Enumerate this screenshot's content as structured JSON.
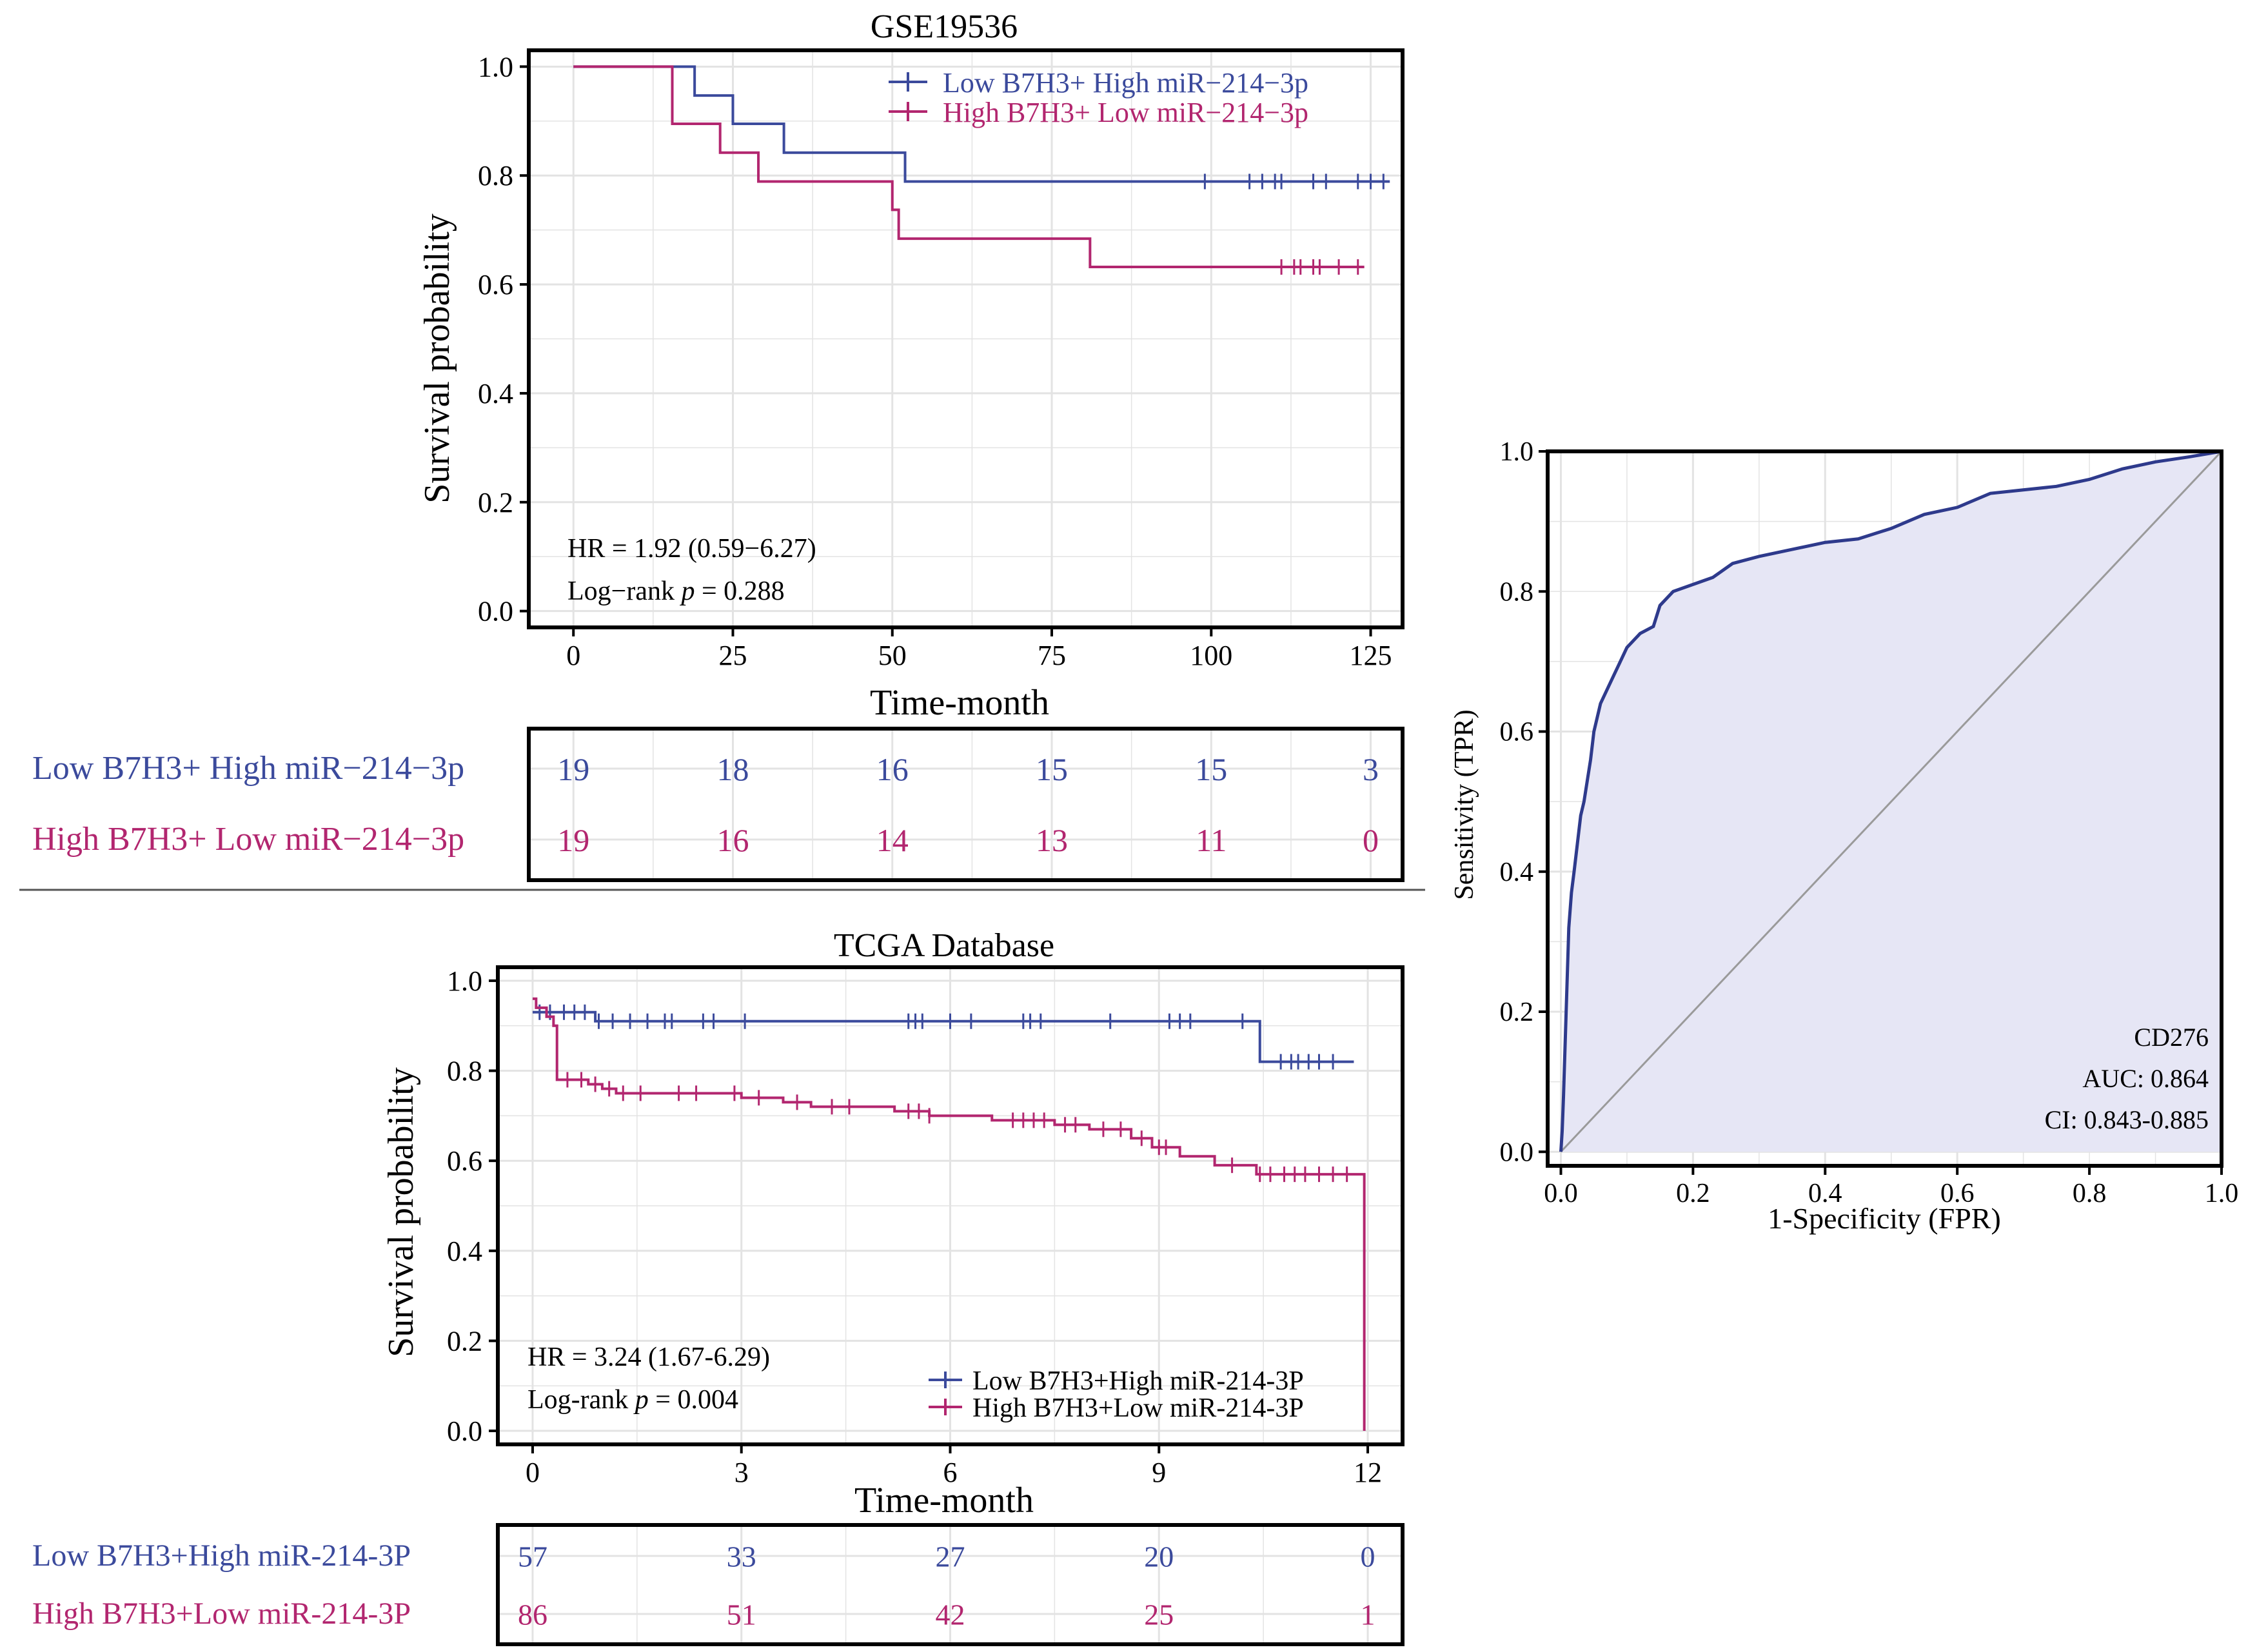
{
  "colors": {
    "low": "#3b4a9c",
    "high": "#b2266f",
    "roc": "#2e3a8c",
    "roc_fill": "#e6e6f5",
    "grid": "#e3e3e3",
    "diag": "#9a9a9a",
    "axis": "#000000"
  },
  "chart_data": [
    {
      "id": "gse",
      "type": "kaplan-meier",
      "title": "GSE19536",
      "xlabel": "Time-month",
      "ylabel": "Survival probability",
      "xlim": [
        -7,
        130
      ],
      "ylim": [
        -0.03,
        1.03
      ],
      "xticks": [
        0,
        25,
        50,
        75,
        100,
        125
      ],
      "xtick_labels": [
        "0",
        "25",
        "50",
        "75",
        "100",
        "125"
      ],
      "yticks": [
        0,
        0.2,
        0.4,
        0.6,
        0.8,
        1.0
      ],
      "ytick_labels": [
        "0.0",
        "0.2",
        "0.4",
        "0.6",
        "0.8",
        "1.0"
      ],
      "hr_text": "HR = 1.92 (0.59−6.27)",
      "logrank_prefix": "Log−rank ",
      "logrank_p": "p",
      "logrank_value": " = 0.288",
      "series": [
        {
          "name": "Low B7H3+ High miR−214−3p",
          "color_key": "low",
          "steps": [
            [
              0,
              1.0
            ],
            [
              19,
              0.947
            ],
            [
              25,
              0.895
            ],
            [
              33,
              0.842
            ],
            [
              52,
              0.789
            ],
            [
              128,
              0.789
            ]
          ],
          "censor": [
            99,
            106,
            108,
            110,
            111,
            116,
            118,
            123,
            125,
            127
          ]
        },
        {
          "name": "High B7H3+ Low miR−214−3p",
          "color_key": "high",
          "steps": [
            [
              0,
              1.0
            ],
            [
              15.5,
              0.895
            ],
            [
              23,
              0.842
            ],
            [
              29,
              0.789
            ],
            [
              50,
              0.737
            ],
            [
              51,
              0.684
            ],
            [
              81,
              0.632
            ],
            [
              124,
              0.632
            ]
          ],
          "censor": [
            111,
            113,
            114,
            116,
            117,
            120,
            123
          ]
        }
      ],
      "risk_table": {
        "times": [
          0,
          25,
          50,
          75,
          100,
          125
        ],
        "rows": [
          {
            "label": "Low B7H3+ High miR−214−3p",
            "color_key": "low",
            "values": [
              "19",
              "18",
              "16",
              "15",
              "15",
              "3"
            ]
          },
          {
            "label": "High B7H3+ Low miR−214−3p",
            "color_key": "high",
            "values": [
              "19",
              "16",
              "14",
              "13",
              "11",
              "0"
            ]
          }
        ]
      }
    },
    {
      "id": "tcga",
      "type": "kaplan-meier",
      "title": "TCGA Database",
      "xlabel": "Time-month",
      "ylabel": "Survival probability",
      "xlim": [
        -0.5,
        12.5
      ],
      "ylim": [
        -0.03,
        1.03
      ],
      "xticks": [
        0,
        3,
        6,
        9,
        12
      ],
      "xtick_labels": [
        "0",
        "3",
        "6",
        "9",
        "12"
      ],
      "yticks": [
        0,
        0.2,
        0.4,
        0.6,
        0.8,
        1.0
      ],
      "ytick_labels": [
        "0.0",
        "0.2",
        "0.4",
        "0.6",
        "0.8",
        "1.0"
      ],
      "hr_text": "HR = 3.24 (1.67-6.29)",
      "logrank_prefix": "Log-rank ",
      "logrank_p": "p",
      "logrank_value": " = 0.004",
      "series": [
        {
          "name": "Low B7H3+High miR-214-3P",
          "color_key": "low",
          "steps": [
            [
              0,
              0.93
            ],
            [
              0.9,
              0.91
            ],
            [
              10.45,
              0.82
            ],
            [
              11.8,
              0.82
            ]
          ],
          "censor": [
            0.1,
            0.25,
            0.45,
            0.6,
            0.75,
            0.95,
            1.15,
            1.4,
            1.65,
            1.9,
            2.0,
            2.45,
            2.6,
            3.05,
            5.4,
            5.5,
            5.6,
            6.0,
            6.3,
            7.05,
            7.15,
            7.3,
            8.3,
            9.15,
            9.3,
            9.45,
            10.2,
            10.75,
            10.9,
            11.0,
            11.15,
            11.3,
            11.5
          ]
        },
        {
          "name": "High B7H3+Low miR-214-3P",
          "color_key": "high",
          "steps": [
            [
              0,
              0.96
            ],
            [
              0.05,
              0.94
            ],
            [
              0.2,
              0.92
            ],
            [
              0.3,
              0.9
            ],
            [
              0.35,
              0.78
            ],
            [
              0.8,
              0.77
            ],
            [
              1.0,
              0.76
            ],
            [
              1.2,
              0.75
            ],
            [
              3.0,
              0.74
            ],
            [
              3.6,
              0.73
            ],
            [
              4.0,
              0.72
            ],
            [
              5.2,
              0.71
            ],
            [
              5.7,
              0.7
            ],
            [
              6.6,
              0.69
            ],
            [
              7.5,
              0.68
            ],
            [
              8.0,
              0.67
            ],
            [
              8.6,
              0.65
            ],
            [
              8.9,
              0.63
            ],
            [
              9.3,
              0.61
            ],
            [
              9.8,
              0.59
            ],
            [
              10.4,
              0.57
            ],
            [
              11.95,
              0.57
            ],
            [
              11.95,
              0.0
            ]
          ],
          "censor": [
            0.5,
            0.7,
            0.9,
            1.1,
            1.3,
            1.55,
            2.1,
            2.35,
            2.9,
            3.25,
            3.8,
            4.3,
            4.55,
            5.4,
            5.55,
            5.7,
            6.9,
            7.05,
            7.2,
            7.35,
            7.65,
            7.8,
            8.2,
            8.45,
            8.75,
            9.0,
            9.1,
            10.05,
            10.45,
            10.6,
            10.8,
            10.95,
            11.1,
            11.3,
            11.5,
            11.7
          ]
        }
      ],
      "risk_table": {
        "times": [
          0,
          3,
          6,
          9,
          12
        ],
        "rows": [
          {
            "label": "Low B7H3+High miR-214-3P",
            "color_key": "low",
            "values": [
              "57",
              "33",
              "27",
              "20",
              "0"
            ]
          },
          {
            "label": "High B7H3+Low miR-214-3P",
            "color_key": "high",
            "values": [
              "86",
              "51",
              "42",
              "25",
              "1"
            ]
          }
        ]
      }
    },
    {
      "id": "roc",
      "type": "roc",
      "xlabel": "1-Specificity (FPR)",
      "ylabel": "Sensitivity (TPR)",
      "xlim": [
        -0.02,
        1.0
      ],
      "ylim": [
        -0.02,
        1.0
      ],
      "xticks": [
        0,
        0.2,
        0.4,
        0.6,
        0.8,
        1.0
      ],
      "xtick_labels": [
        "0.0",
        "0.2",
        "0.4",
        "0.6",
        "0.8",
        "1.0"
      ],
      "yticks": [
        0,
        0.2,
        0.4,
        0.6,
        0.8,
        1.0
      ],
      "ytick_labels": [
        "0.0",
        "0.2",
        "0.4",
        "0.6",
        "0.8",
        "1.0"
      ],
      "annotation": [
        "CD276",
        "AUC: 0.864",
        "CI: 0.843-0.885"
      ],
      "curve": [
        [
          0,
          0
        ],
        [
          0.002,
          0.03
        ],
        [
          0.004,
          0.08
        ],
        [
          0.006,
          0.14
        ],
        [
          0.008,
          0.2
        ],
        [
          0.01,
          0.26
        ],
        [
          0.012,
          0.32
        ],
        [
          0.016,
          0.37
        ],
        [
          0.02,
          0.4
        ],
        [
          0.025,
          0.44
        ],
        [
          0.03,
          0.48
        ],
        [
          0.035,
          0.5
        ],
        [
          0.04,
          0.53
        ],
        [
          0.045,
          0.56
        ],
        [
          0.05,
          0.6
        ],
        [
          0.055,
          0.62
        ],
        [
          0.06,
          0.64
        ],
        [
          0.07,
          0.66
        ],
        [
          0.08,
          0.68
        ],
        [
          0.09,
          0.7
        ],
        [
          0.1,
          0.72
        ],
        [
          0.12,
          0.74
        ],
        [
          0.14,
          0.75
        ],
        [
          0.15,
          0.78
        ],
        [
          0.17,
          0.8
        ],
        [
          0.2,
          0.81
        ],
        [
          0.23,
          0.82
        ],
        [
          0.26,
          0.84
        ],
        [
          0.3,
          0.85
        ],
        [
          0.35,
          0.86
        ],
        [
          0.4,
          0.87
        ],
        [
          0.45,
          0.875
        ],
        [
          0.5,
          0.89
        ],
        [
          0.55,
          0.91
        ],
        [
          0.6,
          0.92
        ],
        [
          0.65,
          0.94
        ],
        [
          0.7,
          0.945
        ],
        [
          0.75,
          0.95
        ],
        [
          0.8,
          0.96
        ],
        [
          0.85,
          0.975
        ],
        [
          0.9,
          0.985
        ],
        [
          0.95,
          0.992
        ],
        [
          1.0,
          1.0
        ]
      ]
    }
  ]
}
